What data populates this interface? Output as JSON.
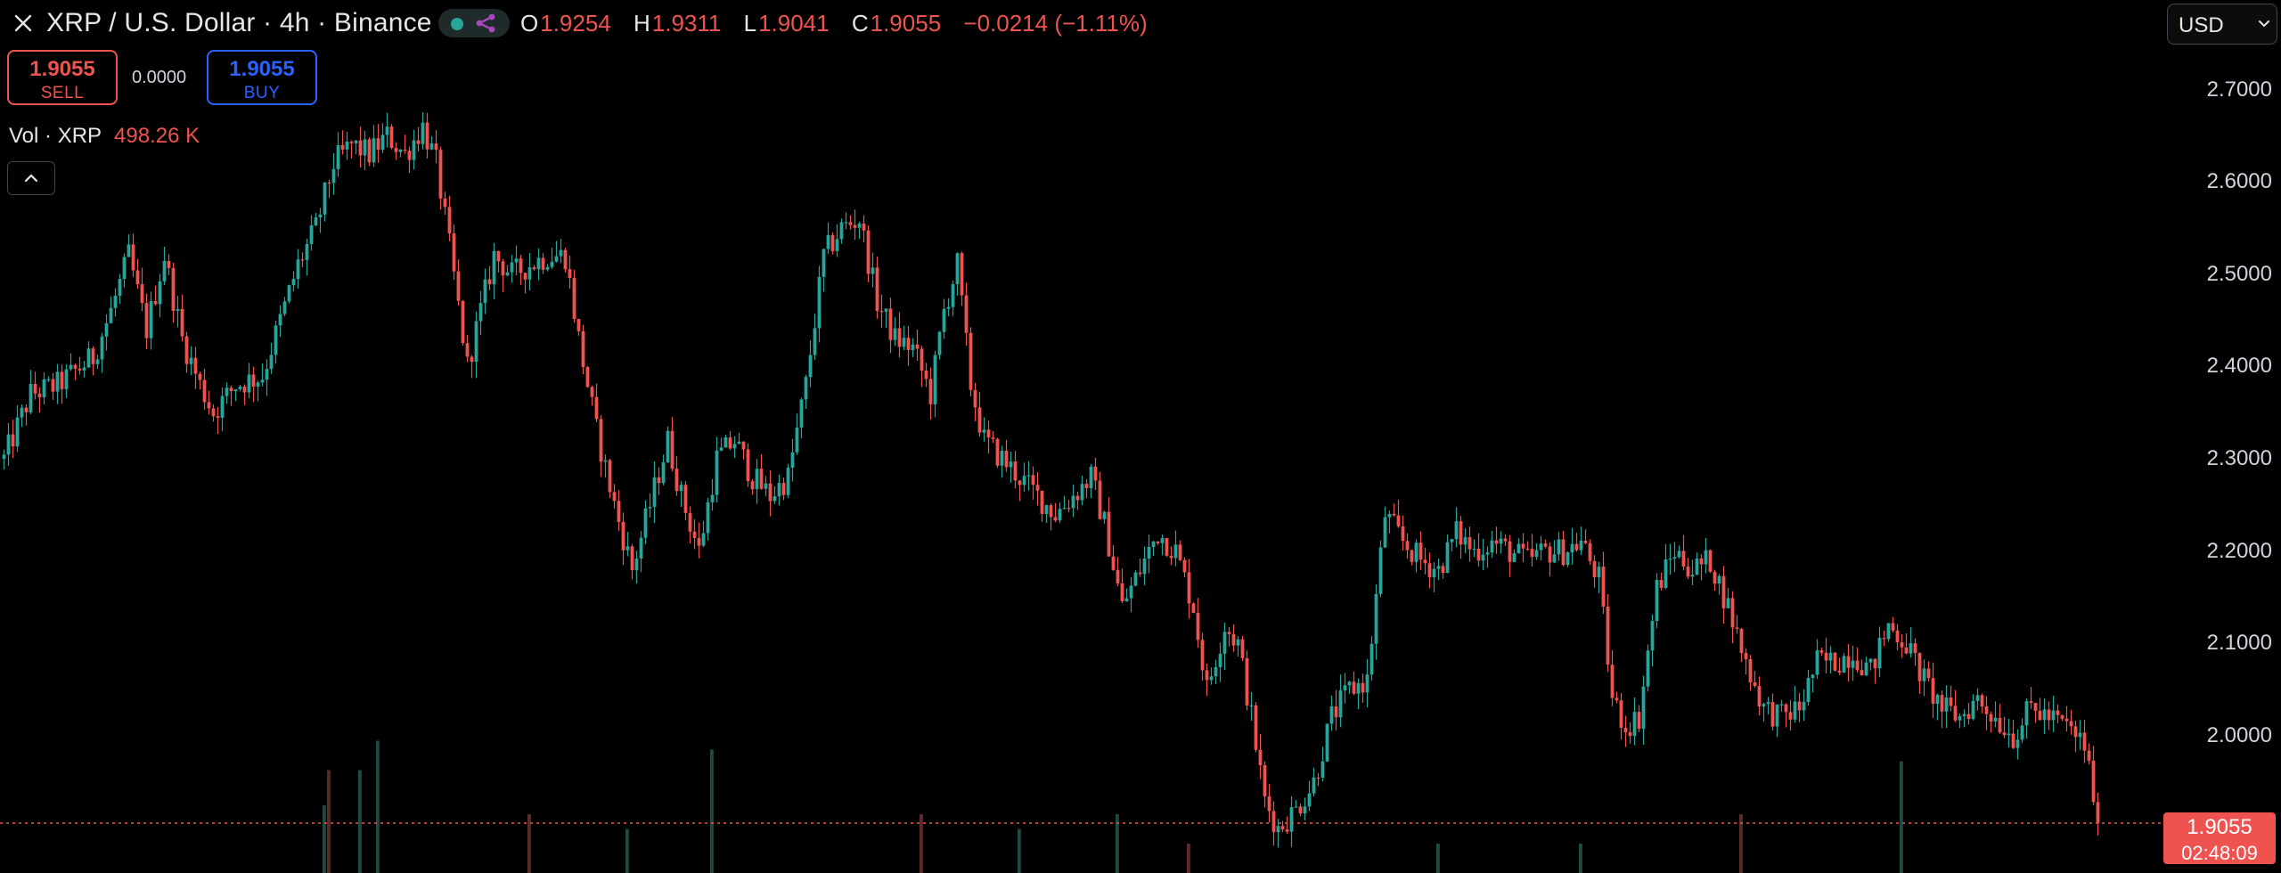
{
  "header": {
    "title": "XRP / U.S. Dollar · 4h · Binance",
    "ohlc": {
      "o_label": "O",
      "o_value": "1.9254",
      "h_label": "H",
      "h_value": "1.9311",
      "l_label": "L",
      "l_value": "1.9041",
      "c_label": "C",
      "c_value": "1.9055",
      "change": "−0.0214 (−1.11%)"
    },
    "status_color": "#26a69a",
    "share_color": "#ab47bc"
  },
  "trade": {
    "sell_price": "1.9055",
    "sell_label": "SELL",
    "spread": "0.0000",
    "buy_price": "1.9055",
    "buy_label": "BUY"
  },
  "volume": {
    "label": "Vol · XRP",
    "value": "498.26 K"
  },
  "currency": {
    "selected": "USD"
  },
  "price_tag": {
    "price": "1.9055",
    "countdown": "02:48:09"
  },
  "colors": {
    "up": "#26a69a",
    "down": "#ef5350",
    "buy": "#2962ff",
    "background": "#000000"
  },
  "chart_data": {
    "type": "candlestick",
    "y_ticks": [
      "2.7000",
      "2.6000",
      "2.5000",
      "2.4000",
      "2.3000",
      "2.2000",
      "2.1000",
      "2.0000"
    ],
    "y_tick_values": [
      2.7,
      2.6,
      2.5,
      2.4,
      2.3,
      2.2,
      2.1,
      2.0
    ],
    "last_price": 1.9055,
    "ylim": [
      1.86,
      2.78
    ],
    "close_path": [
      [
        0,
        2.3
      ],
      [
        6,
        2.37
      ],
      [
        12,
        2.38
      ],
      [
        20,
        2.41
      ],
      [
        24,
        2.46
      ],
      [
        28,
        2.52
      ],
      [
        32,
        2.44
      ],
      [
        36,
        2.52
      ],
      [
        40,
        2.43
      ],
      [
        44,
        2.38
      ],
      [
        47,
        2.35
      ],
      [
        52,
        2.38
      ],
      [
        58,
        2.39
      ],
      [
        62,
        2.45
      ],
      [
        66,
        2.51
      ],
      [
        70,
        2.55
      ],
      [
        74,
        2.62
      ],
      [
        78,
        2.64
      ],
      [
        82,
        2.63
      ],
      [
        86,
        2.65
      ],
      [
        90,
        2.63
      ],
      [
        94,
        2.66
      ],
      [
        97,
        2.62
      ],
      [
        100,
        2.53
      ],
      [
        104,
        2.4
      ],
      [
        107,
        2.46
      ],
      [
        110,
        2.52
      ],
      [
        114,
        2.5
      ],
      [
        118,
        2.51
      ],
      [
        122,
        2.52
      ],
      [
        126,
        2.52
      ],
      [
        129,
        2.43
      ],
      [
        133,
        2.33
      ],
      [
        137,
        2.25
      ],
      [
        141,
        2.18
      ],
      [
        145,
        2.25
      ],
      [
        149,
        2.32
      ],
      [
        152,
        2.26
      ],
      [
        156,
        2.2
      ],
      [
        160,
        2.3
      ],
      [
        164,
        2.32
      ],
      [
        168,
        2.28
      ],
      [
        172,
        2.26
      ],
      [
        176,
        2.28
      ],
      [
        180,
        2.38
      ],
      [
        184,
        2.52
      ],
      [
        188,
        2.55
      ],
      [
        192,
        2.56
      ],
      [
        196,
        2.47
      ],
      [
        200,
        2.43
      ],
      [
        204,
        2.42
      ],
      [
        208,
        2.37
      ],
      [
        211,
        2.46
      ],
      [
        214,
        2.51
      ],
      [
        217,
        2.38
      ],
      [
        220,
        2.32
      ],
      [
        224,
        2.3
      ],
      [
        228,
        2.28
      ],
      [
        232,
        2.26
      ],
      [
        236,
        2.24
      ],
      [
        240,
        2.26
      ],
      [
        244,
        2.28
      ],
      [
        247,
        2.23
      ],
      [
        251,
        2.14
      ],
      [
        255,
        2.18
      ],
      [
        259,
        2.22
      ],
      [
        263,
        2.2
      ],
      [
        267,
        2.14
      ],
      [
        270,
        2.05
      ],
      [
        274,
        2.12
      ],
      [
        277,
        2.1
      ],
      [
        280,
        2.02
      ],
      [
        283,
        1.93
      ],
      [
        286,
        1.9
      ],
      [
        290,
        1.92
      ],
      [
        294,
        1.95
      ],
      [
        298,
        2.02
      ],
      [
        302,
        2.05
      ],
      [
        306,
        2.06
      ],
      [
        310,
        2.24
      ],
      [
        314,
        2.21
      ],
      [
        318,
        2.19
      ],
      [
        322,
        2.18
      ],
      [
        326,
        2.22
      ],
      [
        330,
        2.2
      ],
      [
        334,
        2.21
      ],
      [
        338,
        2.2
      ],
      [
        342,
        2.19
      ],
      [
        346,
        2.2
      ],
      [
        350,
        2.2
      ],
      [
        354,
        2.21
      ],
      [
        358,
        2.17
      ],
      [
        361,
        2.04
      ],
      [
        364,
        2.01
      ],
      [
        367,
        2.02
      ],
      [
        371,
        2.16
      ],
      [
        375,
        2.2
      ],
      [
        379,
        2.18
      ],
      [
        383,
        2.19
      ],
      [
        387,
        2.14
      ],
      [
        391,
        2.08
      ],
      [
        395,
        2.03
      ],
      [
        399,
        2.02
      ],
      [
        403,
        2.03
      ],
      [
        407,
        2.08
      ],
      [
        411,
        2.08
      ],
      [
        415,
        2.09
      ],
      [
        419,
        2.07
      ],
      [
        423,
        2.12
      ],
      [
        427,
        2.1
      ],
      [
        431,
        2.06
      ],
      [
        435,
        2.03
      ],
      [
        439,
        2.02
      ],
      [
        443,
        2.04
      ],
      [
        447,
        2.02
      ],
      [
        451,
        2.0
      ],
      [
        455,
        2.03
      ],
      [
        459,
        2.02
      ],
      [
        463,
        2.01
      ],
      [
        467,
        1.99
      ],
      [
        470,
        1.91
      ]
    ],
    "volume_spikes": [
      [
        72,
        0.23
      ],
      [
        73,
        0.35
      ],
      [
        80,
        0.35
      ],
      [
        84,
        0.45
      ],
      [
        118,
        0.2
      ],
      [
        140,
        0.15
      ],
      [
        159,
        0.42
      ],
      [
        206,
        0.2
      ],
      [
        228,
        0.15
      ],
      [
        250,
        0.2
      ],
      [
        266,
        0.1
      ],
      [
        322,
        0.1
      ],
      [
        354,
        0.1
      ],
      [
        390,
        0.2
      ],
      [
        426,
        0.38
      ]
    ]
  }
}
